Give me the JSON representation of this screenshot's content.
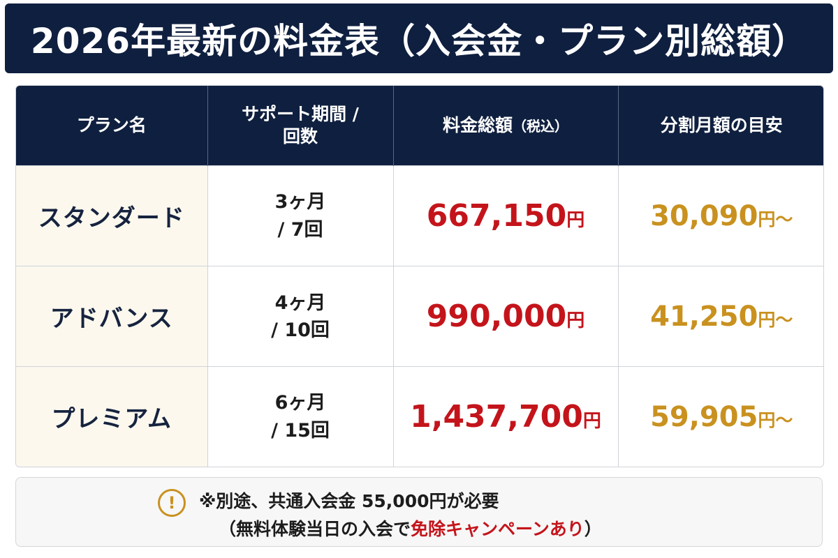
{
  "title": "2026年最新の料金表（入会金・プラン別総額）",
  "table": {
    "headers": {
      "plan": "プラン名",
      "period_line1": "サポート期間 /",
      "period_line2": "回数",
      "total": "料金総額",
      "total_note": "（税込）",
      "monthly": "分割月額の目安"
    },
    "rows": [
      {
        "name": "スタンダード",
        "period": "3ヶ月",
        "sessions": "/  7回",
        "total": "667,150",
        "total_unit": "円",
        "monthly": "30,090",
        "monthly_unit": "円〜"
      },
      {
        "name": "アドバンス",
        "period": "4ヶ月",
        "sessions": "/  10回",
        "total": "990,000",
        "total_unit": "円",
        "monthly": "41,250",
        "monthly_unit": "円〜"
      },
      {
        "name": "プレミアム",
        "period": "6ヶ月",
        "sessions": "/  15回",
        "total": "1,437,700",
        "total_unit": "円",
        "monthly": "59,905",
        "monthly_unit": "円〜"
      }
    ]
  },
  "note": {
    "icon": "exclamation-circle-icon",
    "icon_glyph": "!",
    "line1": "※別途、共通入会金 55,000円が必要",
    "line2_prefix": "（無料体験当日の入会で",
    "line2_highlight": "免除キャンペーンあり",
    "line2_suffix": "）"
  },
  "colors": {
    "navy": "#0f1f3f",
    "red": "#c4141b",
    "gold": "#c9911f",
    "cream": "#fcf8ee"
  }
}
